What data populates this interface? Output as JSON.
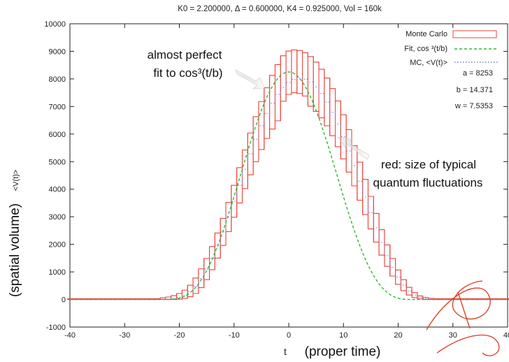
{
  "chart_data": {
    "type": "bar",
    "title": "K0 = 2.200000, Δ = 0.600000, K4 = 0.925000, Vol = 160k",
    "xlabel_t": "t",
    "xlabel_rest": "(proper time)",
    "ylabel": "(spatial volume)",
    "ylabel_small": "<V(t)>",
    "xlim": [
      -40,
      40
    ],
    "ylim": [
      -1000,
      10000
    ],
    "x_ticks": [
      "-40",
      "-30",
      "-20",
      "-10",
      "0",
      "10",
      "20",
      "30",
      "40"
    ],
    "y_ticks": [
      "-1000",
      "0",
      "1000",
      "2000",
      "3000",
      "4000",
      "5000",
      "6000",
      "7000",
      "8000",
      "9000",
      "10000"
    ],
    "grid": false,
    "legend_position": "top-right",
    "legend": [
      {
        "label": "Monte Carlo",
        "style": "box",
        "color": "#e8443a"
      },
      {
        "label": "Fit, cos ³(t/b)",
        "style": "dashed",
        "color": "#2eb82e"
      },
      {
        "label": "MC, <V(t)>",
        "style": "dotted",
        "color": "#7a7ad6"
      }
    ],
    "fit_params": [
      "a = 8253",
      "b = 14.371",
      "w = 7.5353"
    ],
    "fit": {
      "a": 8253,
      "b": 14.371,
      "w": 7.5353
    },
    "series": [
      {
        "name": "MC, <V(t)>",
        "type": "step",
        "x": [
          -40,
          -39,
          -38,
          -37,
          -36,
          -35,
          -34,
          -33,
          -32,
          -31,
          -30,
          -29,
          -28,
          -27,
          -26,
          -25,
          -24,
          -23,
          -22,
          -21,
          -20,
          -19,
          -18,
          -17,
          -16,
          -15,
          -14,
          -13,
          -12,
          -11,
          -10,
          -9,
          -8,
          -7,
          -6,
          -5,
          -4,
          -3,
          -2,
          -1,
          0,
          1,
          2,
          3,
          4,
          5,
          6,
          7,
          8,
          9,
          10,
          11,
          12,
          13,
          14,
          15,
          16,
          17,
          18,
          19,
          20,
          21,
          22,
          23,
          24,
          25,
          26,
          27,
          28,
          29,
          30,
          31,
          32,
          33,
          34,
          35,
          36,
          37,
          38,
          39,
          40
        ],
        "values": [
          0,
          0,
          0,
          0,
          0,
          0,
          0,
          0,
          0,
          0,
          0,
          0,
          0,
          0,
          0,
          0,
          0,
          10,
          20,
          40,
          80,
          150,
          280,
          480,
          760,
          1100,
          1500,
          1950,
          2450,
          2990,
          3560,
          4140,
          4720,
          5280,
          5810,
          6300,
          6740,
          7120,
          7440,
          7690,
          7870,
          7980,
          8020,
          7990,
          7890,
          7710,
          7470,
          7160,
          6790,
          6370,
          5900,
          5390,
          4850,
          4290,
          3720,
          3150,
          2600,
          2070,
          1590,
          1170,
          810,
          520,
          300,
          160,
          70,
          30,
          10,
          0,
          0,
          0,
          0,
          0,
          0,
          0,
          0,
          0,
          0,
          0,
          0,
          0,
          0
        ]
      },
      {
        "name": "Monte Carlo",
        "type": "error_band",
        "x": [
          -40,
          -39,
          -38,
          -37,
          -36,
          -35,
          -34,
          -33,
          -32,
          -31,
          -30,
          -29,
          -28,
          -27,
          -26,
          -25,
          -24,
          -23,
          -22,
          -21,
          -20,
          -19,
          -18,
          -17,
          -16,
          -15,
          -14,
          -13,
          -12,
          -11,
          -10,
          -9,
          -8,
          -7,
          -6,
          -5,
          -4,
          -3,
          -2,
          -1,
          0,
          1,
          2,
          3,
          4,
          5,
          6,
          7,
          8,
          9,
          10,
          11,
          12,
          13,
          14,
          15,
          16,
          17,
          18,
          19,
          20,
          21,
          22,
          23,
          24,
          25,
          26,
          27,
          28,
          29,
          30,
          31,
          32,
          33,
          34,
          35,
          36,
          37,
          38,
          39,
          40
        ],
        "upper": [
          30,
          30,
          30,
          30,
          30,
          30,
          30,
          30,
          30,
          30,
          30,
          30,
          30,
          30,
          30,
          30,
          30,
          60,
          90,
          140,
          220,
          340,
          520,
          780,
          1110,
          1490,
          1920,
          2410,
          2940,
          3520,
          4140,
          4780,
          5420,
          6040,
          6630,
          7180,
          7680,
          8130,
          8520,
          8840,
          9010,
          9050,
          9030,
          8950,
          8810,
          8610,
          8350,
          8030,
          7650,
          7200,
          6700,
          6160,
          5580,
          4980,
          4360,
          3740,
          3120,
          2530,
          1980,
          1490,
          1070,
          720,
          440,
          250,
          130,
          70,
          40,
          30,
          30,
          30,
          30,
          30,
          30,
          30,
          30,
          30,
          30,
          30,
          30,
          30,
          30
        ],
        "lower": [
          0,
          0,
          0,
          0,
          0,
          0,
          0,
          0,
          0,
          0,
          0,
          0,
          0,
          0,
          0,
          0,
          0,
          0,
          0,
          0,
          10,
          40,
          100,
          220,
          430,
          720,
          1080,
          1500,
          1960,
          2460,
          2980,
          3500,
          4020,
          4520,
          5000,
          5440,
          5840,
          6180,
          6480,
          7190,
          7440,
          7500,
          7470,
          7380,
          7010,
          6820,
          6590,
          6300,
          5940,
          5540,
          5100,
          4620,
          4120,
          3600,
          3080,
          2560,
          2080,
          1610,
          1200,
          850,
          550,
          320,
          160,
          70,
          20,
          0,
          0,
          0,
          0,
          0,
          0,
          0,
          0,
          0,
          0,
          0,
          0,
          0,
          0,
          0,
          0
        ]
      }
    ]
  },
  "annotations": {
    "fit_note_line1": "almost perfect",
    "fit_note_line2": "fit to cos³(t/b)",
    "fluct_note_line1": "red: size of typical",
    "fluct_note_line2": "quantum fluctuations"
  },
  "colors": {
    "monte_carlo": "#e8443a",
    "fit": "#2eb82e",
    "mean": "#7a7ad6",
    "watermark": "#e0391f"
  }
}
